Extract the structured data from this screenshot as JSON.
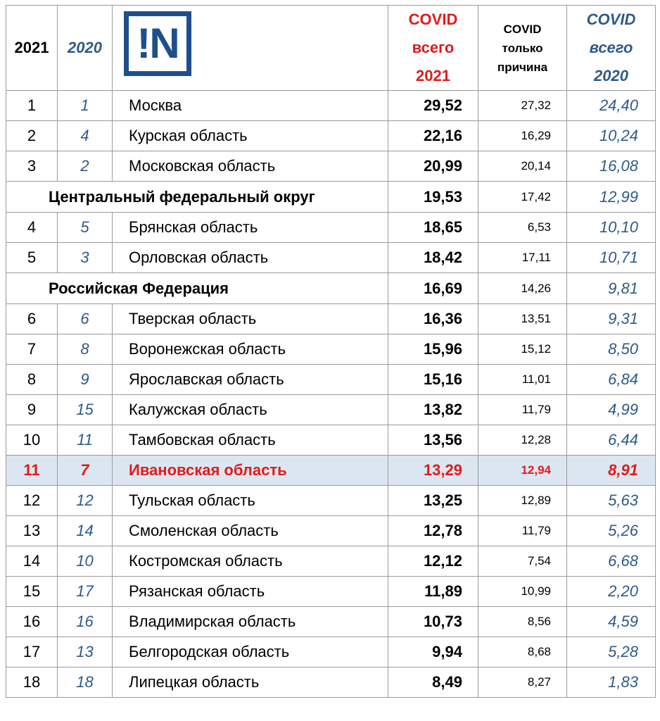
{
  "header": {
    "year_2021": "2021",
    "year_2020": "2020",
    "logo_text": "!N",
    "covid_total_2021": [
      "COVID",
      "всего",
      "2021"
    ],
    "covid_only_cause": [
      "COVID",
      "только",
      "причина"
    ],
    "covid_total_2020": [
      "COVID",
      "всего",
      "2020"
    ]
  },
  "rows": [
    {
      "type": "region",
      "rank2021": "1",
      "rank2020": "1",
      "name": "Москва",
      "total2021": "29,52",
      "only": "27,32",
      "total2020": "24,40"
    },
    {
      "type": "region",
      "rank2021": "2",
      "rank2020": "4",
      "name": "Курская область",
      "total2021": "22,16",
      "only": "16,29",
      "total2020": "10,24"
    },
    {
      "type": "region",
      "rank2021": "3",
      "rank2020": "2",
      "name": "Московская область",
      "total2021": "20,99",
      "only": "20,14",
      "total2020": "16,08"
    },
    {
      "type": "summary",
      "name": "Центральный федеральный округ",
      "total2021": "19,53",
      "only": "17,42",
      "total2020": "12,99"
    },
    {
      "type": "region",
      "rank2021": "4",
      "rank2020": "5",
      "name": "Брянская область",
      "total2021": "18,65",
      "only": "6,53",
      "total2020": "10,10"
    },
    {
      "type": "region",
      "rank2021": "5",
      "rank2020": "3",
      "name": "Орловская область",
      "total2021": "18,42",
      "only": "17,11",
      "total2020": "10,71"
    },
    {
      "type": "summary",
      "name": "Российская Федерация",
      "total2021": "16,69",
      "only": "14,26",
      "total2020": "9,81"
    },
    {
      "type": "region",
      "rank2021": "6",
      "rank2020": "6",
      "name": "Тверская область",
      "total2021": "16,36",
      "only": "13,51",
      "total2020": "9,31"
    },
    {
      "type": "region",
      "rank2021": "7",
      "rank2020": "8",
      "name": "Воронежская область",
      "total2021": "15,96",
      "only": "15,12",
      "total2020": "8,50"
    },
    {
      "type": "region",
      "rank2021": "8",
      "rank2020": "9",
      "name": "Ярославская область",
      "total2021": "15,16",
      "only": "11,01",
      "total2020": "6,84"
    },
    {
      "type": "region",
      "rank2021": "9",
      "rank2020": "15",
      "name": "Калужская область",
      "total2021": "13,82",
      "only": "11,79",
      "total2020": "4,99"
    },
    {
      "type": "region",
      "rank2021": "10",
      "rank2020": "11",
      "name": "Тамбовская область",
      "total2021": "13,56",
      "only": "12,28",
      "total2020": "6,44"
    },
    {
      "type": "region",
      "highlight": true,
      "rank2021": "11",
      "rank2020": "7",
      "name": "Ивановская область",
      "total2021": "13,29",
      "only": "12,94",
      "total2020": "8,91"
    },
    {
      "type": "region",
      "rank2021": "12",
      "rank2020": "12",
      "name": "Тульская область",
      "total2021": "13,25",
      "only": "12,89",
      "total2020": "5,63"
    },
    {
      "type": "region",
      "rank2021": "13",
      "rank2020": "14",
      "name": "Смоленская область",
      "total2021": "12,78",
      "only": "11,79",
      "total2020": "5,26"
    },
    {
      "type": "region",
      "rank2021": "14",
      "rank2020": "10",
      "name": "Костромская область",
      "total2021": "12,12",
      "only": "7,54",
      "total2020": "6,68"
    },
    {
      "type": "region",
      "rank2021": "15",
      "rank2020": "17",
      "name": "Рязанская область",
      "total2021": "11,89",
      "only": "10,99",
      "total2020": "2,20"
    },
    {
      "type": "region",
      "rank2021": "16",
      "rank2020": "16",
      "name": "Владимирская область",
      "total2021": "10,73",
      "only": "8,56",
      "total2020": "4,59"
    },
    {
      "type": "region",
      "rank2021": "17",
      "rank2020": "13",
      "name": "Белгородская область",
      "total2021": "9,94",
      "only": "8,68",
      "total2020": "5,28"
    },
    {
      "type": "region",
      "rank2021": "18",
      "rank2020": "18",
      "name": "Липецкая область",
      "total2021": "8,49",
      "only": "8,27",
      "total2020": "1,83"
    }
  ]
}
